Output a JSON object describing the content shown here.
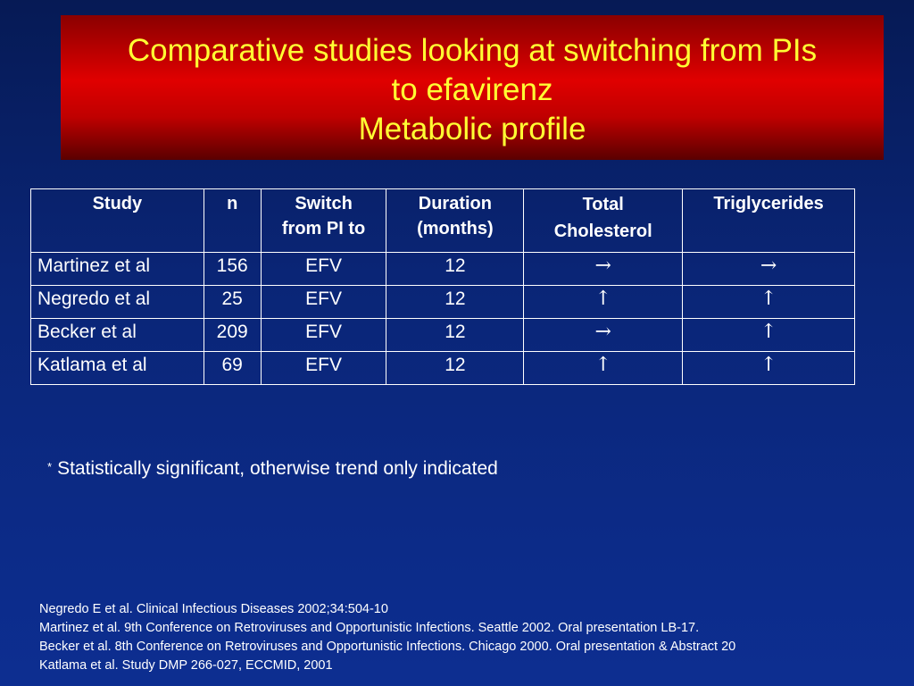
{
  "title": {
    "line1": "Comparative studies looking at switching from PIs",
    "line2": "to efavirenz",
    "line3": "Metabolic profile"
  },
  "table": {
    "headers": {
      "study": "Study",
      "n": "n",
      "switch_line1": "Switch",
      "switch_line2": "from PI to",
      "duration_line1": "Duration",
      "duration_line2": "(months)",
      "cholesterol_line1": "Total",
      "cholesterol_line2": "Cholesterol",
      "triglycerides": "Triglycerides"
    },
    "rows": [
      {
        "study": "Martinez et al",
        "n": "156",
        "switch": "EFV",
        "duration": "12",
        "cholesterol": "→",
        "triglycerides": "→"
      },
      {
        "study": "Negredo et al",
        "n": "25",
        "switch": "EFV",
        "duration": "12",
        "cholesterol": "↑",
        "triglycerides": "↑"
      },
      {
        "study": "Becker et al",
        "n": "209",
        "switch": "EFV",
        "duration": "12",
        "cholesterol": "→",
        "triglycerides": "↑"
      },
      {
        "study": "Katlama et al",
        "n": "69",
        "switch": "EFV",
        "duration": "12",
        "cholesterol": "↑",
        "triglycerides": "↑"
      }
    ]
  },
  "footnote": {
    "marker": "*",
    "text": "Statistically significant, otherwise trend only indicated"
  },
  "references": [
    "Negredo E et al. Clinical Infectious Diseases 2002;34:504-10",
    "Martinez et al. 9th Conference on Retroviruses and Opportunistic Infections.  Seattle 2002.  Oral presentation LB-17.",
    "Becker et al. 8th Conference on Retroviruses and Opportunistic Infections. Chicago 2000. Oral presentation & Abstract 20",
    "Katlama et al. Study DMP 266-027, ECCMID, 2001"
  ],
  "colors": {
    "background": "#0a2576",
    "title_band": "#e00000",
    "title_text": "#ffff33",
    "text": "#ffffff"
  }
}
